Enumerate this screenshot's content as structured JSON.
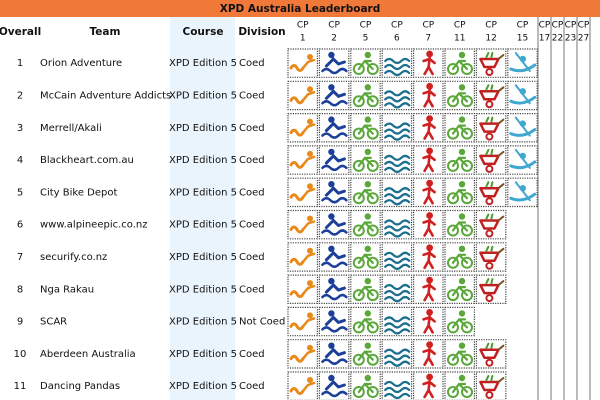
{
  "title": "XPD Australia Leaderboard",
  "table": {
    "headers": [
      "Overall",
      "Team",
      "Course",
      "Division"
    ],
    "checkpoints": [
      [
        "CP",
        "1"
      ],
      [
        "CP",
        "2"
      ],
      [
        "CP",
        "5"
      ],
      [
        "CP",
        "6"
      ],
      [
        "CP",
        "7"
      ],
      [
        "CP",
        "11"
      ],
      [
        "CP",
        "12"
      ],
      [
        "CP",
        "15"
      ],
      [
        "CP",
        "17"
      ],
      [
        "CP",
        "22"
      ],
      [
        "CP",
        "23"
      ],
      [
        "CP",
        "27"
      ]
    ],
    "rows": [
      [
        "1",
        "Orion Adventure",
        "XPD Edition 5",
        "Coed"
      ],
      [
        "2",
        "McCain Adventure Addicts",
        "XPD Edition 5",
        "Coed"
      ],
      [
        "3",
        "Merrell/Akali",
        "XPD Edition 5",
        "Coed"
      ],
      [
        "4",
        "Blackheart.com.au",
        "XPD Edition 5",
        "Coed"
      ],
      [
        "5",
        "City Bike Depot",
        "XPD Edition 5",
        "Coed"
      ],
      [
        "6",
        "www.alpineepic.co.nz",
        "XPD Edition 5",
        "Coed"
      ],
      [
        "7",
        "securify.co.nz",
        "XPD Edition 5",
        "Coed"
      ],
      [
        "8",
        "Nga Rakau",
        "XPD Edition 5",
        "Coed"
      ],
      [
        "9",
        "SCAR",
        "XPD Edition 5",
        "Not Coed"
      ],
      [
        "10",
        "Aberdeen Australia",
        "XPD Edition 5",
        "Coed"
      ],
      [
        "11",
        "Dancing Pandas",
        "XPD Edition 5",
        "Coed"
      ]
    ]
  }
}
